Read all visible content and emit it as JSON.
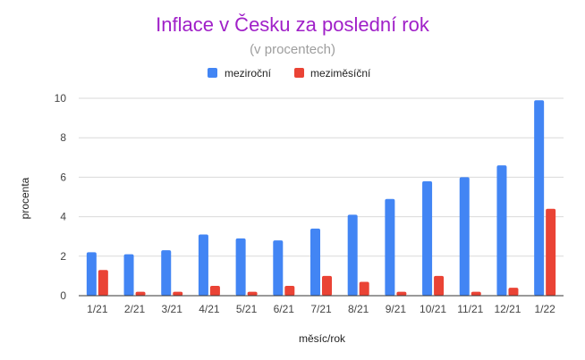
{
  "chart_data": {
    "type": "bar",
    "title": "Inflace v Česku za poslední rok",
    "subtitle": "(v procentech)",
    "xlabel": "měsíc/rok",
    "ylabel": "procenta",
    "categories": [
      "1/21",
      "2/21",
      "3/21",
      "4/21",
      "5/21",
      "6/21",
      "7/21",
      "8/21",
      "9/21",
      "10/21",
      "11/21",
      "12/21",
      "1/22"
    ],
    "series": [
      {
        "name": "meziroční",
        "color": "#4285f4",
        "values": [
          2.2,
          2.1,
          2.3,
          3.1,
          2.9,
          2.8,
          3.4,
          4.1,
          4.9,
          5.8,
          6.0,
          6.6,
          9.9
        ]
      },
      {
        "name": "meziměsíční",
        "color": "#ea4335",
        "values": [
          1.3,
          0.2,
          0.2,
          0.5,
          0.2,
          0.5,
          1.0,
          0.7,
          0.2,
          1.0,
          0.2,
          0.4,
          4.4
        ]
      }
    ],
    "ylim": [
      0,
      10
    ],
    "yticks": [
      0,
      2,
      4,
      6,
      8,
      10
    ],
    "grid": true,
    "legend_position": "top",
    "title_color": "#a020c8"
  }
}
